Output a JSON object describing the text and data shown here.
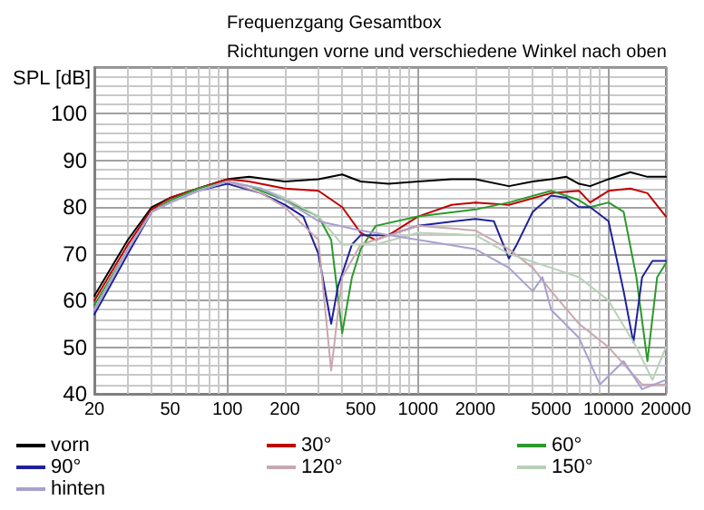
{
  "chart_data": {
    "type": "line",
    "title": "Frequenzgang Gesamtbox",
    "subtitle": "Richtungen vorne und verschiedene Winkel nach oben",
    "ylabel": "SPL [dB]",
    "log": "x",
    "grid": true,
    "legend": "bottom",
    "marker": "none",
    "line_style": "solid",
    "xlim": [
      20,
      20000
    ],
    "xticks": [
      20,
      50,
      100,
      200,
      500,
      1000,
      2000,
      5000,
      10000,
      20000
    ],
    "ylim": [
      40,
      110
    ],
    "yticks": [
      40,
      50,
      60,
      70,
      80,
      90,
      100
    ],
    "series": [
      {
        "name": "vorn",
        "color": "#000000",
        "x": [
          20,
          30,
          40,
          50,
          70,
          100,
          130,
          200,
          300,
          400,
          500,
          700,
          1000,
          1500,
          2000,
          3000,
          4000,
          5000,
          6000,
          7000,
          8000,
          10000,
          13000,
          16000,
          20000
        ],
        "values": [
          61,
          73,
          80,
          82,
          84,
          86,
          86.5,
          85.5,
          86,
          87,
          85.5,
          85,
          85.5,
          86,
          86,
          84.5,
          85.5,
          86,
          86.5,
          85,
          84.5,
          86,
          87.5,
          86.5,
          86.5
        ]
      },
      {
        "name": "30°",
        "color": "#c00000",
        "x": [
          20,
          30,
          40,
          50,
          70,
          100,
          130,
          200,
          300,
          400,
          500,
          600,
          700,
          1000,
          1500,
          2000,
          3000,
          5000,
          7000,
          8000,
          10000,
          13000,
          16000,
          20000
        ],
        "values": [
          60,
          72,
          79.5,
          82,
          84,
          86,
          85.5,
          84,
          83.5,
          80,
          74.5,
          73,
          74,
          78,
          80.5,
          81,
          80.5,
          83,
          83.5,
          81,
          83.5,
          84,
          83,
          78
        ]
      },
      {
        "name": "60°",
        "color": "#2a9a2a",
        "x": [
          20,
          30,
          40,
          50,
          70,
          100,
          130,
          200,
          300,
          350,
          400,
          420,
          450,
          500,
          600,
          1000,
          2000,
          3000,
          5000,
          7000,
          8000,
          10000,
          12000,
          14000,
          16000,
          18000,
          20000
        ],
        "values": [
          59,
          71,
          79,
          81.5,
          84,
          85.5,
          84.5,
          81.5,
          78,
          73,
          53,
          58,
          65,
          71,
          76,
          78,
          79.5,
          81,
          83.5,
          81.5,
          80,
          81,
          79,
          65,
          47,
          65,
          68
        ]
      },
      {
        "name": "90°",
        "color": "#20209c",
        "x": [
          20,
          30,
          40,
          50,
          70,
          100,
          150,
          200,
          250,
          300,
          350,
          380,
          450,
          500,
          700,
          1000,
          2000,
          2500,
          3000,
          3300,
          4000,
          5000,
          6000,
          7000,
          8000,
          10000,
          12000,
          13500,
          15000,
          17000,
          20000
        ],
        "values": [
          57,
          70,
          79,
          81,
          83.5,
          85,
          83,
          80.5,
          78,
          70,
          55,
          63,
          72,
          74,
          74,
          76,
          77.5,
          77,
          69,
          72,
          79,
          82.5,
          82,
          80,
          80,
          77,
          62,
          51,
          65,
          68.5,
          68.5
        ]
      },
      {
        "name": "120°",
        "color": "#c8a8b0",
        "x": [
          20,
          30,
          40,
          50,
          70,
          100,
          150,
          200,
          300,
          350,
          400,
          500,
          1000,
          2000,
          3000,
          4000,
          5000,
          7000,
          10000,
          15000,
          20000
        ],
        "values": [
          58,
          71,
          79,
          81,
          83.5,
          85.5,
          83,
          80,
          73,
          45,
          65,
          72,
          76,
          75,
          71,
          67,
          62,
          55,
          50,
          42,
          42
        ]
      },
      {
        "name": "150°",
        "color": "#b8d0b8",
        "x": [
          20,
          30,
          40,
          50,
          70,
          100,
          150,
          200,
          300,
          400,
          600,
          1000,
          2000,
          3000,
          5000,
          7000,
          10000,
          14000,
          17000,
          20000
        ],
        "values": [
          58,
          71,
          79,
          81,
          83.5,
          85.5,
          84,
          82,
          78,
          72,
          72,
          74.5,
          74,
          70,
          67,
          65,
          60,
          50,
          43,
          50
        ]
      },
      {
        "name": "hinten",
        "color": "#a8a0d0",
        "x": [
          20,
          30,
          40,
          50,
          70,
          100,
          150,
          200,
          300,
          500,
          1000,
          2000,
          3000,
          4000,
          4500,
          5000,
          7000,
          9000,
          12000,
          15000,
          20000
        ],
        "values": [
          58,
          71,
          79,
          81,
          83.5,
          85.5,
          84,
          81.5,
          77,
          75,
          73,
          71,
          67,
          62,
          65,
          58,
          52,
          42,
          47,
          41,
          43
        ]
      }
    ]
  }
}
